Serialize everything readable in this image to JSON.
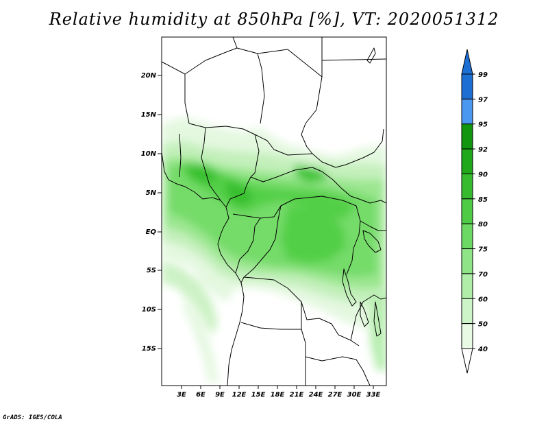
{
  "title": "Relative humidity at 850hPa [%], VT: 2020051312",
  "credit": "GrADS: IGES/COLA",
  "map": {
    "lon_range": [
      0,
      35
    ],
    "lat_range": [
      -20,
      25
    ],
    "lon_ticks": [
      "3E",
      "6E",
      "9E",
      "12E",
      "15E",
      "18E",
      "21E",
      "24E",
      "27E",
      "30E",
      "33E"
    ],
    "lat_ticks": [
      "20N",
      "15N",
      "10N",
      "5N",
      "EQ",
      "5S",
      "10S",
      "15S"
    ]
  },
  "legend": {
    "levels": [
      "99",
      "97",
      "95",
      "92",
      "90",
      "85",
      "80",
      "75",
      "70",
      "60",
      "50",
      "40"
    ],
    "colors": [
      "#1e6fd4",
      "#1e6fd4",
      "#4a98f0",
      "#12960f",
      "#20a81a",
      "#36bb2e",
      "#4fcb46",
      "#6bd963",
      "#8ee486",
      "#afeda8",
      "#cdf4c8",
      "#e8fae4"
    ]
  }
}
